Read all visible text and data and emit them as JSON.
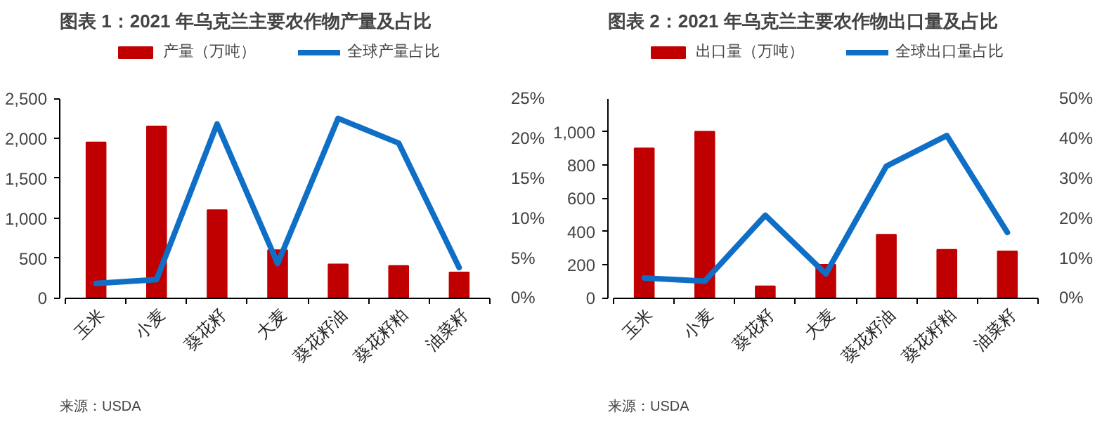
{
  "chart_data": [
    {
      "type": "bar",
      "title": "图表 1：2021 年乌克兰主要农作物产量及占比",
      "categories": [
        "玉米",
        "小麦",
        "葵花籽",
        "大麦",
        "葵花籽油",
        "葵花籽粕",
        "油菜籽"
      ],
      "series": [
        {
          "name": "产量（万吨）",
          "color": "#c00000",
          "values": [
            1950,
            2150,
            1100,
            600,
            420,
            400,
            320
          ]
        },
        {
          "name": "全球产量占比",
          "type": "line",
          "axis": "y2",
          "color": "#0f6fc6",
          "values": [
            1.8,
            2.3,
            21.8,
            4.3,
            22.5,
            19.4,
            3.8
          ]
        }
      ],
      "ylim": [
        0,
        2500
      ],
      "yticks": [
        0,
        {
          "value": 500,
          "label": "500"
        },
        {
          "value": 1000,
          "label": "1,000"
        },
        {
          "value": 1500,
          "label": "1,500"
        },
        {
          "value": 2000,
          "label": "2,000"
        },
        {
          "value": 2500,
          "label": "2,500"
        }
      ],
      "y2lim": [
        0,
        25
      ],
      "y2ticks": [
        {
          "value": 0,
          "label": "0%"
        },
        {
          "value": 5,
          "label": "5%"
        },
        {
          "value": 10,
          "label": "10%"
        },
        {
          "value": 15,
          "label": "15%"
        },
        {
          "value": 20,
          "label": "20%"
        },
        {
          "value": 25,
          "label": "25%"
        }
      ],
      "legend": "top",
      "grid": false,
      "annotations": [
        "来源：USDA"
      ]
    },
    {
      "type": "bar",
      "title": "图表 2：2021 年乌克兰主要农作物出口量及占比",
      "categories": [
        "玉米",
        "小麦",
        "葵花籽",
        "大麦",
        "葵花籽油",
        "葵花籽粕",
        "油菜籽"
      ],
      "series": [
        {
          "name": "出口量（万吨）",
          "color": "#c00000",
          "values": [
            900,
            1000,
            70,
            200,
            380,
            290,
            280
          ]
        },
        {
          "name": "全球出口量占比",
          "type": "line",
          "axis": "y2",
          "color": "#0f6fc6",
          "values": [
            5,
            4.2,
            20.7,
            6,
            33,
            40.7,
            16.4
          ]
        }
      ],
      "ylim": [
        0,
        1200
      ],
      "yticks": [
        0,
        200,
        400,
        600,
        800,
        {
          "value": 1000,
          "label": "1,000"
        }
      ],
      "y2lim": [
        0,
        50
      ],
      "y2ticks": [
        {
          "value": 0,
          "label": "0%"
        },
        {
          "value": 10,
          "label": "10%"
        },
        {
          "value": 20,
          "label": "20%"
        },
        {
          "value": 30,
          "label": "30%"
        },
        {
          "value": 40,
          "label": "40%"
        },
        {
          "value": 50,
          "label": "50%"
        }
      ],
      "legend": "top",
      "grid": false,
      "annotations": [
        "来源：USDA"
      ]
    }
  ]
}
